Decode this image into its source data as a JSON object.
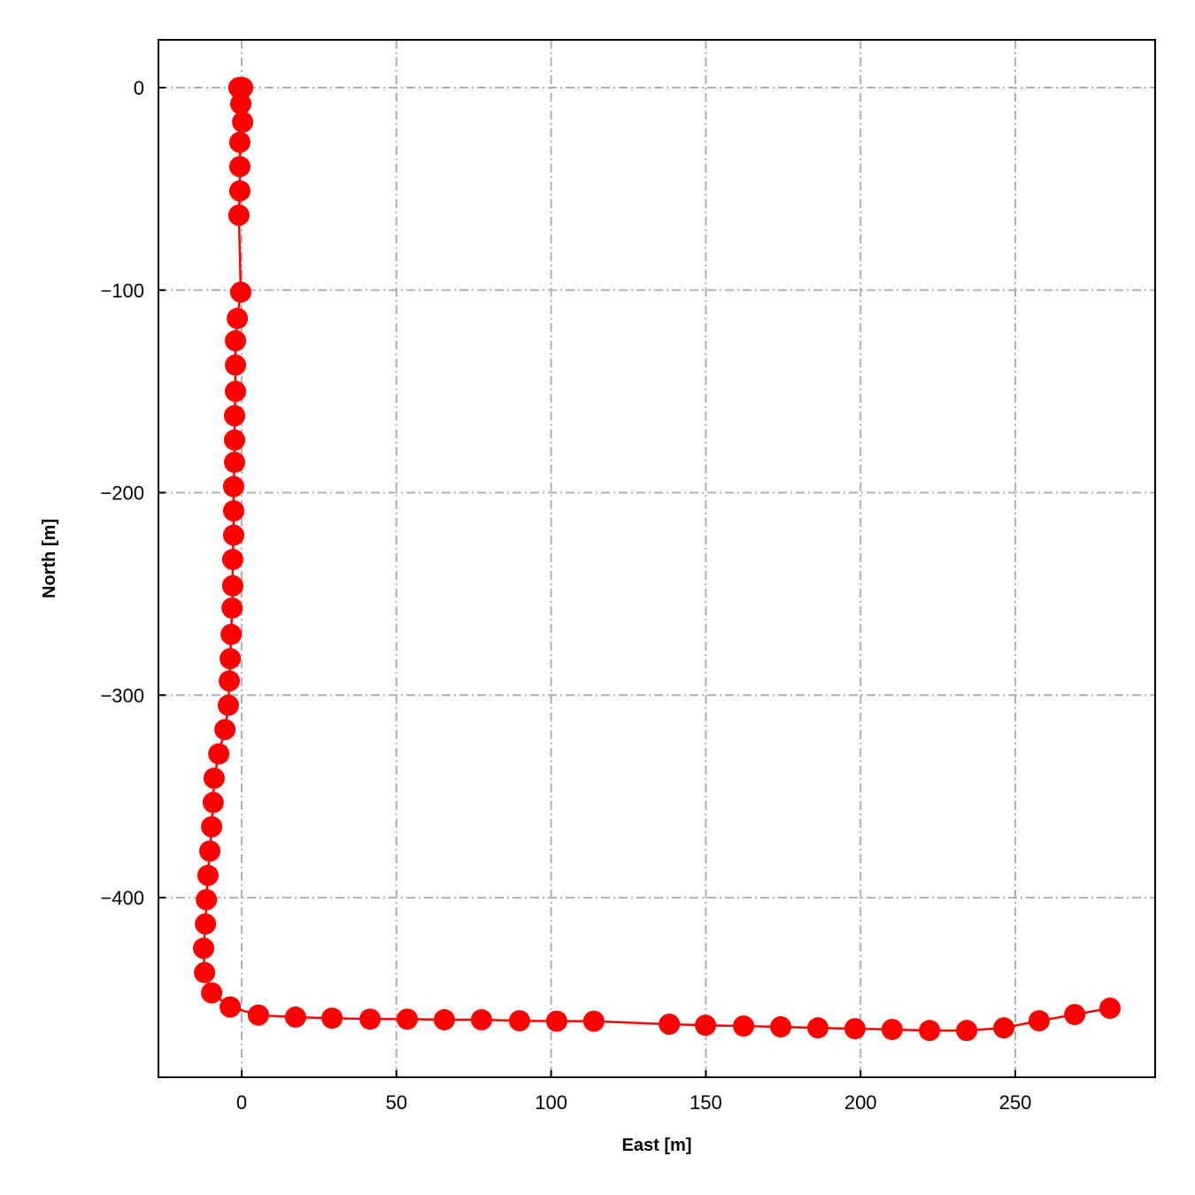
{
  "chart_data": {
    "type": "line",
    "title": "",
    "xlabel": "East [m]",
    "ylabel": "North [m]",
    "xlim": [
      -26.9,
      295.2
    ],
    "ylim": [
      -488.7,
      23.6
    ],
    "xticks": [
      0,
      50,
      100,
      150,
      200,
      250
    ],
    "yticks": [
      0,
      -100,
      -200,
      -300,
      -400
    ],
    "xtick_labels": [
      "0",
      "50",
      "100",
      "150",
      "200",
      "250"
    ],
    "ytick_labels": [
      "0",
      "−100",
      "−200",
      "−300",
      "−400"
    ],
    "grid": true,
    "grid_style": "dash-dot",
    "marker": "circle",
    "series": [
      {
        "color": "#ff0000",
        "x": [
          -0.9,
          0,
          0.3,
          -0.3,
          0.3,
          -0.6,
          -0.6,
          -0.6,
          -0.9,
          -0.3,
          -1.4,
          -2.0,
          -2.0,
          -2.0,
          -2.3,
          -2.3,
          -2.3,
          -2.6,
          -2.6,
          -2.6,
          -2.9,
          -2.9,
          -3.1,
          -3.4,
          -3.7,
          -4.0,
          -4.3,
          -5.4,
          -7.4,
          -8.9,
          -9.2,
          -9.7,
          -10.3,
          -10.9,
          -11.4,
          -11.7,
          -12.3,
          -12.0,
          -9.7,
          -3.7,
          5.4,
          17.4,
          29.2,
          41.5,
          53.5,
          65.5,
          77.5,
          89.8,
          101.8,
          113.8,
          138.2,
          149.9,
          162.2,
          174.2,
          186.2,
          198.2,
          210.2,
          222.3,
          234.3,
          246.3,
          257.7,
          269.2,
          280.6
        ],
        "y": [
          0,
          0,
          0,
          -8,
          -17,
          -27,
          -39,
          -51,
          -63,
          -101,
          -114,
          -125,
          -137,
          -150,
          -162,
          -174,
          -185,
          -197,
          -209,
          -221,
          -233,
          -246,
          -257,
          -270,
          -282,
          -293,
          -305,
          -317,
          -329,
          -341,
          -353,
          -365,
          -377,
          -389,
          -401,
          -413,
          -425,
          -437,
          -447,
          -454,
          -458,
          -459,
          -459.5,
          -460,
          -460,
          -460.3,
          -460.3,
          -460.8,
          -461,
          -461,
          -462.5,
          -463,
          -463.4,
          -463.8,
          -464.3,
          -464.7,
          -465.1,
          -465.6,
          -465.6,
          -464.3,
          -460.8,
          -457.7,
          -454.6
        ]
      }
    ]
  }
}
